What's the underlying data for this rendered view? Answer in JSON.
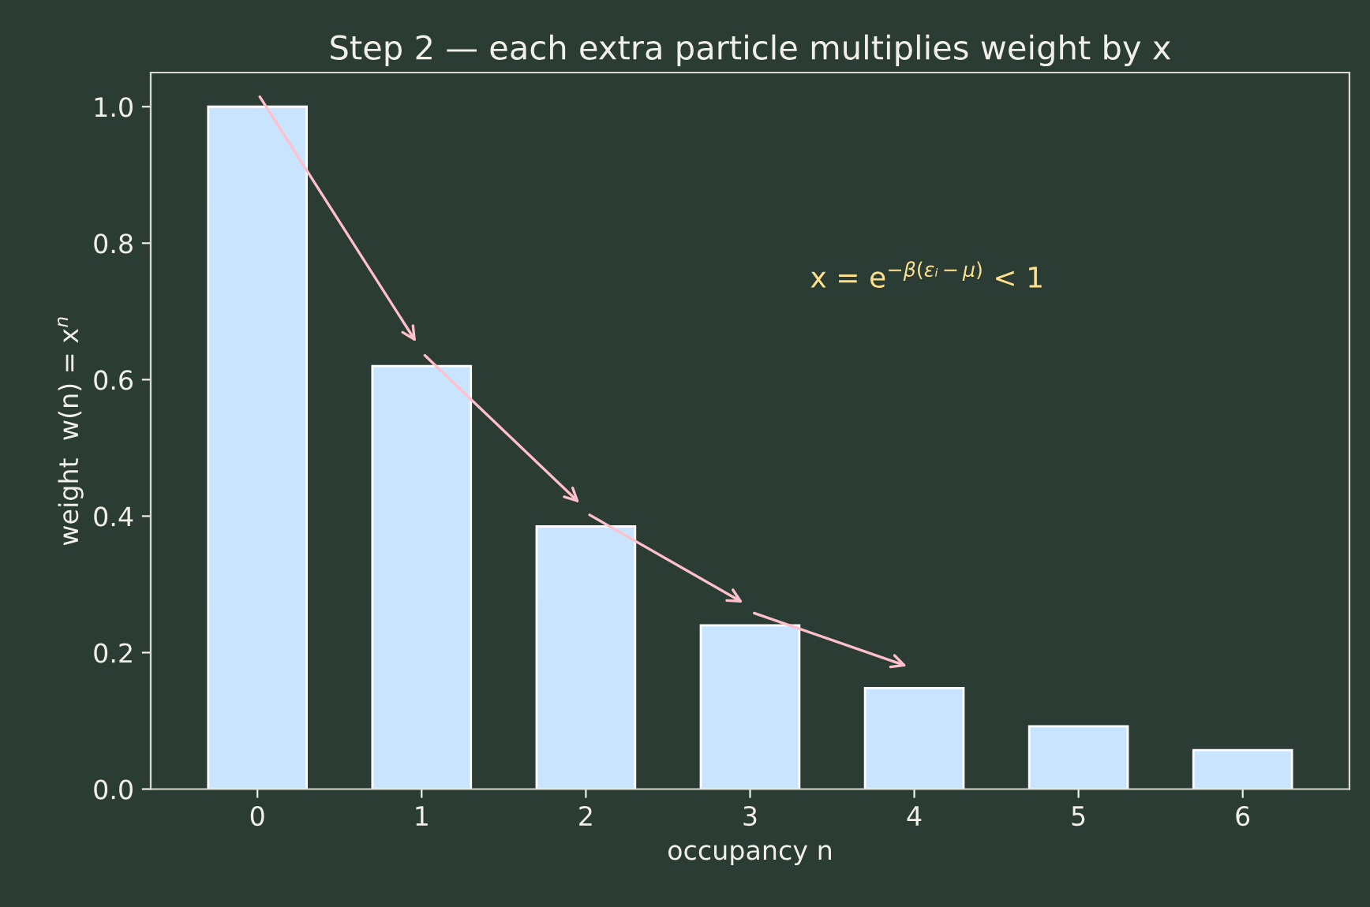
{
  "chart_data": {
    "type": "bar",
    "title": "Step 2 — each extra particle multiplies weight by x",
    "xlabel": "occupancy n",
    "ylabel": "weight  w(n) = x$^{n}$",
    "categories": [
      "0",
      "1",
      "2",
      "3",
      "4",
      "5",
      "6"
    ],
    "values": [
      1.0,
      0.62,
      0.385,
      0.24,
      0.148,
      0.092,
      0.057
    ],
    "color": "#c8e4ff",
    "ylim": [
      0,
      1.05
    ],
    "yticks": [
      {
        "value": 0,
        "label": "0.0"
      },
      {
        "value": 0.2,
        "label": "0.2"
      },
      {
        "value": 0.4,
        "label": "0.4"
      },
      {
        "value": 0.6,
        "label": "0.6"
      },
      {
        "value": 0.8,
        "label": "0.8"
      },
      {
        "value": 1.0,
        "label": "1.0"
      }
    ],
    "annotations": [
      "x = e$^{−β(εᵢ−μ)}$ < 1"
    ],
    "grid": false,
    "legend": false
  }
}
